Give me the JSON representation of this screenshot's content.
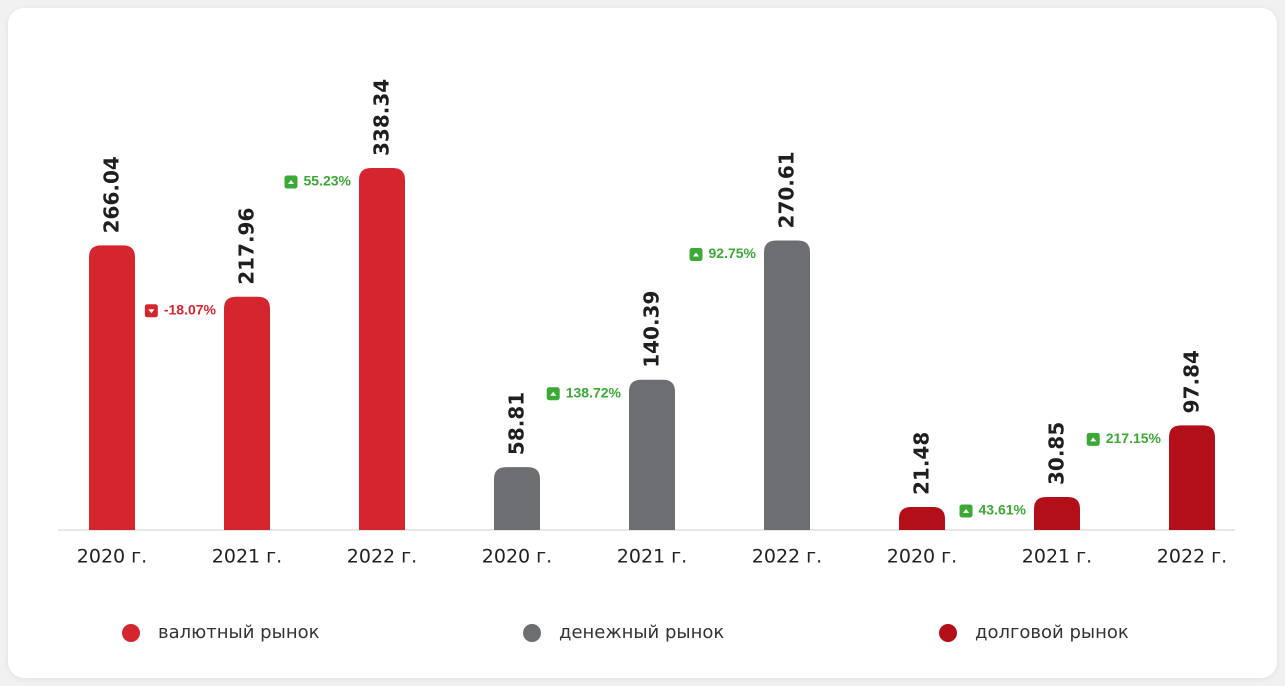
{
  "chart_data": {
    "type": "bar",
    "categories": [
      "2020 г.",
      "2021 г.",
      "2022 г."
    ],
    "series": [
      {
        "name": "валютный рынок",
        "color": "#d52630",
        "values": [
          266.04,
          217.96,
          338.34
        ],
        "changes": [
          -18.07,
          55.23
        ],
        "change_labels": [
          "-18.07%",
          "55.23%"
        ]
      },
      {
        "name": "денежный рынок",
        "color": "#6d6e71",
        "values": [
          58.81,
          140.39,
          270.61
        ],
        "changes": [
          138.72,
          92.75
        ],
        "change_labels": [
          "138.72%",
          "92.75%"
        ]
      },
      {
        "name": "долговой рынок",
        "color": "#b30f18",
        "values": [
          21.48,
          30.85,
          97.84
        ],
        "changes": [
          43.61,
          217.15
        ],
        "change_labels": [
          "43.61%",
          "217.15%"
        ]
      }
    ]
  }
}
